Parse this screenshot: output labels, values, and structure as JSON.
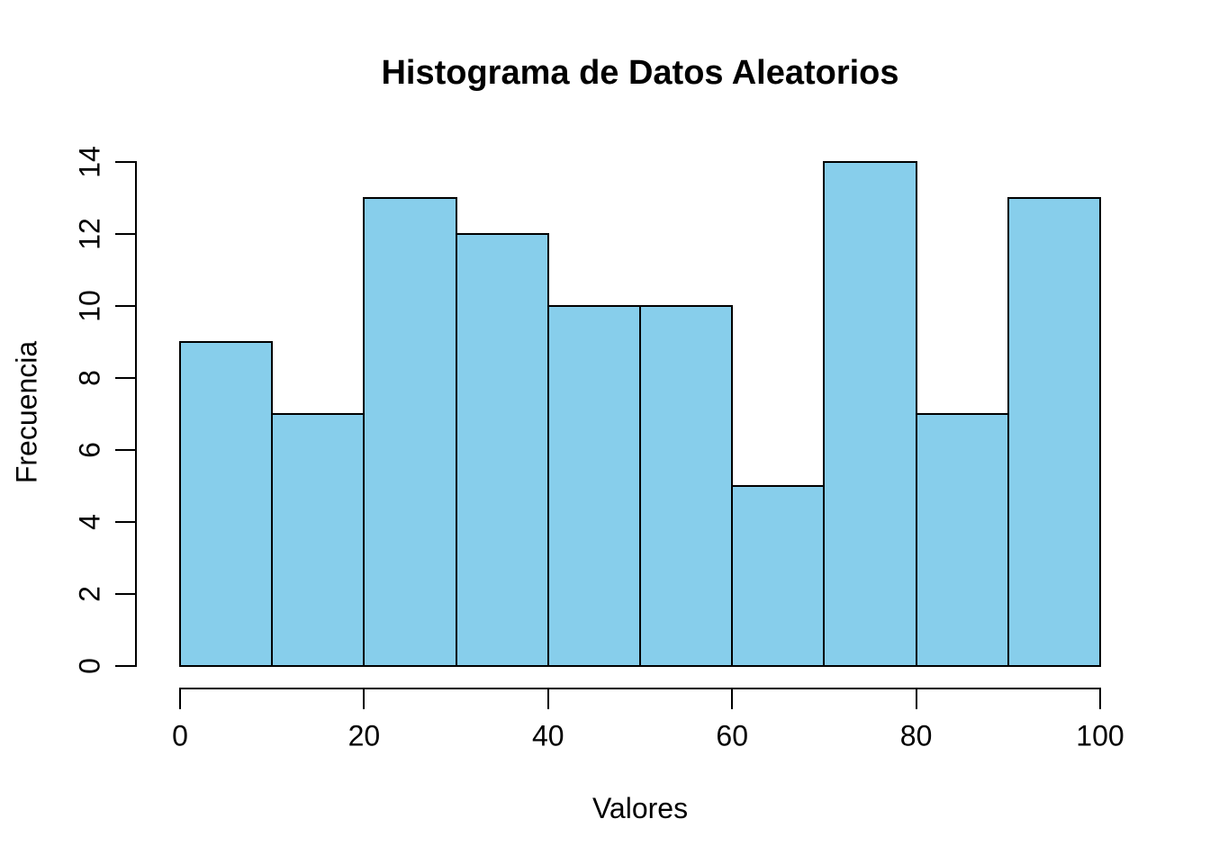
{
  "figure": {
    "background": "#ffffff",
    "text_color": "#000000"
  },
  "chart_data": {
    "type": "bar",
    "subtype": "histogram",
    "title": "Histograma de Datos Aleatorios",
    "xlabel": "Valores",
    "ylabel": "Frecuencia",
    "bin_width": 10,
    "bin_edges": [
      0,
      10,
      20,
      30,
      40,
      50,
      60,
      70,
      80,
      90,
      100
    ],
    "values": [
      9,
      7,
      13,
      12,
      10,
      10,
      5,
      14,
      7,
      13
    ],
    "x_ticks": [
      0,
      20,
      40,
      60,
      80,
      100
    ],
    "y_ticks": [
      0,
      2,
      4,
      6,
      8,
      10,
      12,
      14
    ],
    "xlim": [
      0,
      100
    ],
    "ylim": [
      0,
      14
    ],
    "bar_fill": "#87CEEB",
    "bar_stroke": "#000000",
    "axis_color": "#000000",
    "grid": false,
    "legend": null
  }
}
